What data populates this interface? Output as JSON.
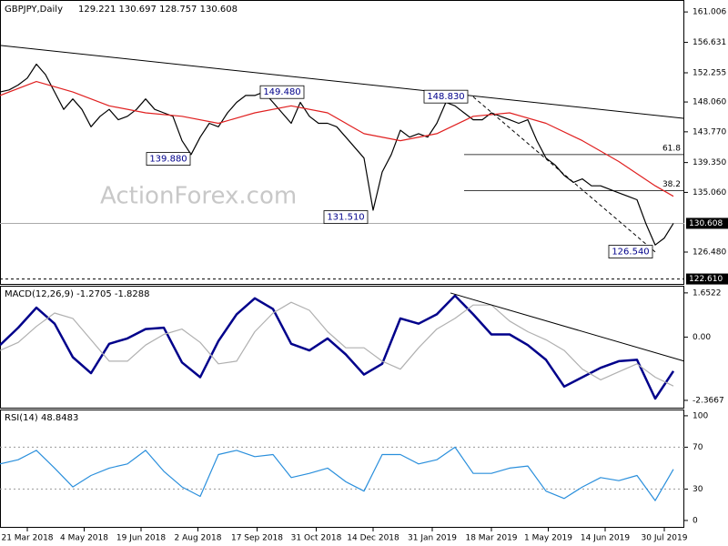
{
  "chart_data": [
    {
      "type": "line",
      "title": "GBPJPY,Daily",
      "subtitle": "129.221 130.697 128.757 130.608",
      "watermark": "ActionForex.com",
      "xlim": [
        0,
        150.4
      ],
      "ylim": [
        121.9,
        162.2
      ],
      "yticks": [
        161.006,
        156.631,
        152.255,
        {
          "value": 148.06,
          "label": "148.060"
        },
        {
          "value": 143.77,
          "label": "143.770"
        },
        {
          "value": 139.35,
          "label": "139.350"
        },
        {
          "value": 135.06,
          "label": "135.060"
        },
        {
          "value": 126.48,
          "label": "126.480"
        }
      ],
      "series": [
        {
          "name": "GBPJPY",
          "color": "#000000",
          "x": [
            0,
            2,
            4,
            6,
            8,
            10,
            12,
            14,
            16,
            18,
            20,
            22,
            24,
            26,
            28,
            30,
            32,
            34,
            36,
            38,
            40,
            42,
            44,
            46,
            48,
            50,
            52,
            54,
            56,
            58,
            60,
            62,
            64,
            66,
            68,
            70,
            72,
            74,
            76,
            78,
            80,
            82,
            84,
            86,
            88,
            90,
            92,
            94,
            96,
            98,
            100,
            102,
            104,
            106,
            108,
            110,
            112,
            114,
            116,
            118,
            120,
            122,
            124,
            126,
            128,
            130,
            132,
            134,
            136,
            138,
            140,
            142,
            144,
            146,
            148
          ],
          "values": [
            149.5,
            149.8,
            150.5,
            151.5,
            153.5,
            152,
            149.5,
            147,
            148.5,
            147,
            144.5,
            146,
            147,
            145.5,
            146,
            147,
            148.5,
            147,
            146.5,
            146,
            142.5,
            140.5,
            143,
            145,
            144.5,
            146.5,
            148,
            149,
            149,
            149.5,
            148,
            146.5,
            145,
            148,
            146,
            145,
            145,
            144.5,
            143,
            141.5,
            140,
            132.5,
            138,
            140.5,
            144,
            143,
            143.5,
            143,
            145,
            148,
            147.5,
            146.5,
            145.5,
            145.5,
            146.5,
            146,
            145.5,
            145,
            145.5,
            142.5,
            140,
            139,
            137.5,
            136.5,
            137,
            136,
            136,
            135.5,
            135,
            134.5,
            134,
            130.5,
            127.5,
            128.5,
            130.608
          ]
        },
        {
          "name": "SMA",
          "color": "#e02020",
          "x": [
            0,
            8,
            16,
            24,
            32,
            40,
            48,
            56,
            64,
            72,
            80,
            88,
            96,
            104,
            112,
            120,
            128,
            136,
            144,
            148
          ],
          "values": [
            149,
            151,
            149.5,
            147.5,
            146.5,
            146,
            145,
            146.5,
            147.5,
            146.5,
            143.5,
            142.5,
            143.5,
            146,
            146.5,
            145,
            142.5,
            139.5,
            136,
            134.5
          ]
        }
      ],
      "price_lines": [
        {
          "value": 130.608,
          "label": "130.608",
          "style": "solid"
        },
        {
          "value": 122.61,
          "label": "122.610",
          "style": "dashed"
        }
      ],
      "trendlines": [
        {
          "x": [
            0,
            150.4
          ],
          "y": [
            156.2,
            145.7
          ],
          "style": "solid"
        },
        {
          "x": [
            104,
            144
          ],
          "y": [
            148.8,
            126.5
          ],
          "style": "dashed"
        }
      ],
      "levels": [
        {
          "name": "61.8",
          "price": 140.5,
          "x_from": 102
        },
        {
          "name": "38.2",
          "price": 135.3,
          "x_from": 102
        }
      ],
      "annotations": [
        {
          "x": 62,
          "value": 149.48,
          "label": "149.480"
        },
        {
          "x": 37,
          "value": 139.88,
          "label": "139.880"
        },
        {
          "x": 76,
          "value": 131.51,
          "label": "131.510"
        },
        {
          "x": 98,
          "value": 148.83,
          "label": "148.830"
        },
        {
          "x": 138.6,
          "value": 126.54,
          "label": "126.540"
        }
      ]
    },
    {
      "type": "line",
      "title": "MACD(12,26,9) -1.2705 -1.8288",
      "xlim": [
        0,
        150.4
      ],
      "ylim": [
        -2.64,
        1.92
      ],
      "yticks": [
        1.6522,
        {
          "value": 0,
          "label": "0.00"
        },
        -2.3667
      ],
      "series": [
        {
          "name": "MACD",
          "color": "#00008b",
          "x": [
            0,
            4,
            8,
            12,
            16,
            20,
            24,
            28,
            32,
            36,
            40,
            44,
            48,
            52,
            56,
            60,
            64,
            68,
            72,
            76,
            80,
            84,
            88,
            92,
            96,
            100,
            104,
            108,
            112,
            116,
            120,
            124,
            128,
            132,
            136,
            140,
            144,
            148
          ],
          "values": [
            -0.3,
            0.35,
            1.1,
            0.5,
            -0.75,
            -1.35,
            -0.25,
            -0.05,
            0.3,
            0.35,
            -0.95,
            -1.5,
            -0.15,
            0.85,
            1.45,
            1.05,
            -0.25,
            -0.5,
            -0.05,
            -0.65,
            -1.4,
            -1.0,
            0.7,
            0.5,
            0.85,
            1.55,
            0.85,
            0.1,
            0.1,
            -0.3,
            -0.85,
            -1.85,
            -1.5,
            -1.15,
            -0.9,
            -0.85,
            -2.3,
            -1.2705
          ]
        },
        {
          "name": "Signal",
          "color": "#b0b0b0",
          "x": [
            0,
            4,
            8,
            12,
            16,
            20,
            24,
            28,
            32,
            36,
            40,
            44,
            48,
            52,
            56,
            60,
            64,
            68,
            72,
            76,
            80,
            84,
            88,
            92,
            96,
            100,
            104,
            108,
            112,
            116,
            120,
            124,
            128,
            132,
            136,
            140,
            144,
            148
          ],
          "values": [
            -0.5,
            -0.2,
            0.4,
            0.9,
            0.7,
            -0.1,
            -0.9,
            -0.9,
            -0.3,
            0.1,
            0.3,
            -0.2,
            -1.0,
            -0.9,
            0.2,
            0.9,
            1.3,
            1.0,
            0.2,
            -0.4,
            -0.4,
            -0.9,
            -1.2,
            -0.4,
            0.3,
            0.7,
            1.2,
            1.2,
            0.6,
            0.2,
            -0.1,
            -0.5,
            -1.2,
            -1.6,
            -1.3,
            -1.0,
            -1.5,
            -1.8288
          ]
        }
      ],
      "trendlines": [
        {
          "x": [
            99,
            150.4
          ],
          "y": [
            1.65,
            -0.9
          ],
          "style": "solid"
        }
      ]
    },
    {
      "type": "line",
      "title": "RSI(14) 48.8483",
      "xlim": [
        0,
        150.4
      ],
      "ylim": [
        -7,
        106
      ],
      "yticks": [
        100,
        70,
        30,
        0
      ],
      "level_lines": [
        70,
        30
      ],
      "xticks": [
        {
          "value": 6,
          "label": "21 Mar 2018"
        },
        {
          "value": 18.5,
          "label": "4 May 2018"
        },
        {
          "value": 31,
          "label": "19 Jun 2018"
        },
        {
          "value": 43.5,
          "label": "2 Aug 2018"
        },
        {
          "value": 56.5,
          "label": "17 Sep 2018"
        },
        {
          "value": 69.5,
          "label": "31 Oct 2018"
        },
        {
          "value": 82,
          "label": "14 Dec 2018"
        },
        {
          "value": 95,
          "label": "31 Jan 2019"
        },
        {
          "value": 108,
          "label": "18 Mar 2019"
        },
        {
          "value": 120.5,
          "label": "1 May 2019"
        },
        {
          "value": 133,
          "label": "14 Jun 2019"
        },
        {
          "value": 146,
          "label": "30 Jul 2019"
        }
      ],
      "series": [
        {
          "name": "RSI",
          "color": "#2a8fdc",
          "x": [
            0,
            4,
            8,
            12,
            16,
            20,
            24,
            28,
            32,
            36,
            40,
            44,
            48,
            52,
            56,
            60,
            64,
            68,
            72,
            76,
            80,
            84,
            88,
            92,
            96,
            100,
            104,
            108,
            112,
            116,
            120,
            124,
            128,
            132,
            136,
            140,
            144,
            148
          ],
          "values": [
            54,
            58,
            67,
            50,
            32,
            43,
            50,
            54,
            67,
            47,
            32,
            23,
            63,
            67,
            61,
            63,
            41,
            45,
            50,
            37,
            28,
            63,
            63,
            54,
            58,
            70,
            45,
            45,
            50,
            52,
            28,
            21,
            32,
            41,
            38,
            43,
            19,
            48.8483
          ]
        }
      ]
    }
  ]
}
